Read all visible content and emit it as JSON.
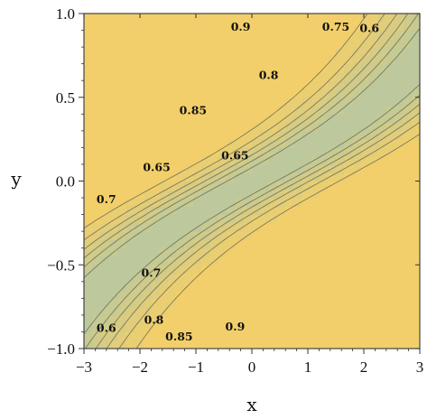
{
  "chart_data": {
    "type": "contour",
    "xlabel": "x",
    "ylabel": "y",
    "xlim": [
      -3,
      3
    ],
    "ylim": [
      -1,
      1
    ],
    "x_ticks": [
      "−3",
      "−2",
      "−1",
      "0",
      "1",
      "2",
      "3"
    ],
    "y_ticks": [
      "−1.0",
      "−0.5",
      "0.0",
      "0.5",
      "1.0"
    ],
    "contour_levels": [
      0.6,
      0.65,
      0.7,
      0.75,
      0.8,
      0.85,
      0.9
    ],
    "contour_labels": [
      {
        "text": "0.9",
        "x": -0.2,
        "y": 0.92
      },
      {
        "text": "0.75",
        "x": 1.5,
        "y": 0.92
      },
      {
        "text": "0.6",
        "x": 2.1,
        "y": 0.91
      },
      {
        "text": "0.8",
        "x": 0.3,
        "y": 0.63
      },
      {
        "text": "0.85",
        "x": -1.05,
        "y": 0.42
      },
      {
        "text": "0.65",
        "x": -1.7,
        "y": 0.08
      },
      {
        "text": "0.65",
        "x": -0.3,
        "y": 0.15
      },
      {
        "text": "0.7",
        "x": -2.6,
        "y": -0.11
      },
      {
        "text": "0.7",
        "x": -1.8,
        "y": -0.55
      },
      {
        "text": "0.8",
        "x": -1.75,
        "y": -0.83
      },
      {
        "text": "0.85",
        "x": -1.3,
        "y": -0.93
      },
      {
        "text": "0.9",
        "x": -0.3,
        "y": -0.87
      },
      {
        "text": "0.6",
        "x": -2.6,
        "y": -0.88
      }
    ],
    "colors": {
      "low": "#b9c9a0",
      "high": "#f2cf6a",
      "line": "#6b6b55"
    }
  }
}
